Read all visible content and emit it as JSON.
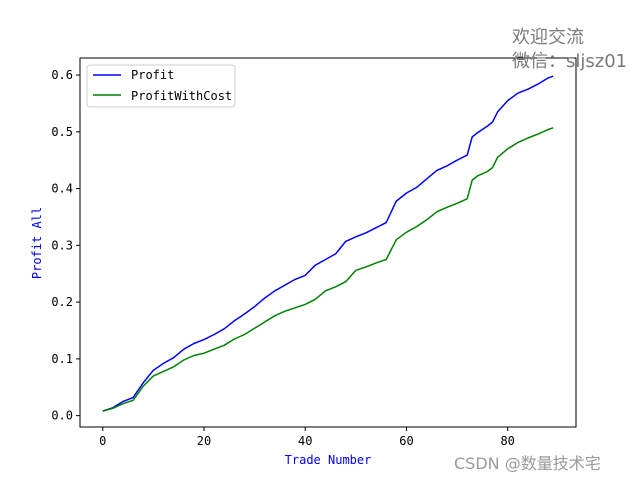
{
  "chart_data": {
    "type": "line",
    "title": "",
    "xlabel": "Trade Number",
    "ylabel": "Profit All",
    "label_color": "#0000ff",
    "xlim": [
      -4.5,
      93.5
    ],
    "ylim": [
      -0.02,
      0.63
    ],
    "xticks": [
      0,
      20,
      40,
      60,
      80
    ],
    "yticks": [
      0.0,
      0.1,
      0.2,
      0.3,
      0.4,
      0.5,
      0.6
    ],
    "ytick_labels": [
      "0.0",
      "0.1",
      "0.2",
      "0.3",
      "0.4",
      "0.5",
      "0.6"
    ],
    "grid": false,
    "legend_position": "upper-left",
    "x": [
      0,
      2,
      4,
      6,
      8,
      10,
      12,
      14,
      16,
      18,
      20,
      22,
      24,
      26,
      28,
      30,
      32,
      34,
      36,
      38,
      40,
      42,
      44,
      46,
      48,
      50,
      52,
      54,
      56,
      58,
      60,
      62,
      64,
      66,
      68,
      70,
      72,
      73,
      74,
      76,
      77,
      78,
      80,
      82,
      84,
      86,
      88,
      89
    ],
    "series": [
      {
        "name": "Profit",
        "color": "#0000ff",
        "values": [
          0.008,
          0.014,
          0.025,
          0.032,
          0.058,
          0.08,
          0.092,
          0.102,
          0.117,
          0.127,
          0.134,
          0.143,
          0.153,
          0.167,
          0.179,
          0.192,
          0.207,
          0.22,
          0.23,
          0.24,
          0.247,
          0.265,
          0.275,
          0.285,
          0.307,
          0.315,
          0.322,
          0.331,
          0.34,
          0.378,
          0.392,
          0.402,
          0.417,
          0.432,
          0.44,
          0.45,
          0.459,
          0.491,
          0.498,
          0.51,
          0.517,
          0.535,
          0.555,
          0.568,
          0.575,
          0.584,
          0.595,
          0.598
        ]
      },
      {
        "name": "ProfitWithCost",
        "color": "#008000",
        "values": [
          0.008,
          0.013,
          0.021,
          0.027,
          0.052,
          0.07,
          0.078,
          0.086,
          0.098,
          0.106,
          0.11,
          0.117,
          0.124,
          0.135,
          0.143,
          0.154,
          0.165,
          0.176,
          0.184,
          0.19,
          0.196,
          0.205,
          0.22,
          0.227,
          0.236,
          0.256,
          0.262,
          0.269,
          0.275,
          0.31,
          0.323,
          0.333,
          0.345,
          0.359,
          0.367,
          0.374,
          0.382,
          0.415,
          0.422,
          0.43,
          0.437,
          0.455,
          0.47,
          0.481,
          0.489,
          0.496,
          0.504,
          0.507
        ]
      }
    ]
  },
  "watermark": {
    "line1": "欢迎交流",
    "line2": "微信：sljsz01",
    "footer": "CSDN @数量技术宅"
  }
}
